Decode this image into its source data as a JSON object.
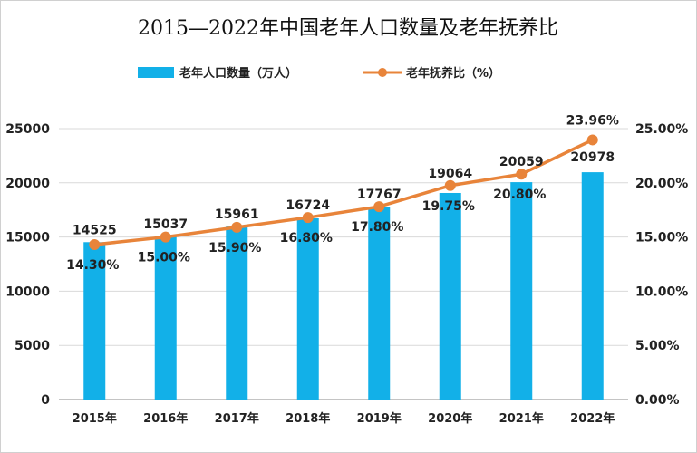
{
  "chart_data": {
    "type": "bar+line",
    "title": "2015—2022年中国老年人口数量及老年抚养比",
    "categories": [
      "2015年",
      "2016年",
      "2017年",
      "2018年",
      "2019年",
      "2020年",
      "2021年",
      "2022年"
    ],
    "series": [
      {
        "name": "老年人口数量（万人）",
        "type": "bar",
        "axis": "left",
        "color": "#12B0E8",
        "values": [
          14525,
          15037,
          15961,
          16724,
          17767,
          19064,
          20059,
          20978
        ],
        "labels": [
          "14525",
          "15037",
          "15961",
          "16724",
          "17767",
          "19064",
          "20059",
          "20978"
        ]
      },
      {
        "name": "老年抚养比（%）",
        "type": "line",
        "axis": "right",
        "color": "#E8843A",
        "values": [
          14.3,
          15.0,
          15.9,
          16.8,
          17.8,
          19.75,
          20.8,
          23.96
        ],
        "labels": [
          "14.30%",
          "15.00%",
          "15.90%",
          "16.80%",
          "17.80%",
          "19.75%",
          "20.80%",
          "23.96%"
        ]
      }
    ],
    "left_axis": {
      "ylim": [
        0,
        25000
      ],
      "ticks": [
        "0",
        "5000",
        "10000",
        "15000",
        "20000",
        "25000"
      ]
    },
    "right_axis": {
      "ylim": [
        0,
        25
      ],
      "ticks": [
        "0.00%",
        "5.00%",
        "10.00%",
        "15.00%",
        "20.00%",
        "25.00%"
      ]
    },
    "grid": true,
    "legend": "top"
  }
}
